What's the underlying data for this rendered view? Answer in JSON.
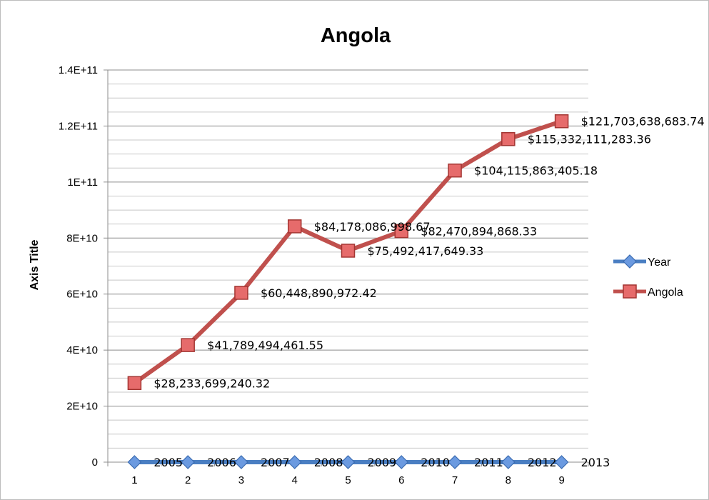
{
  "chart_data": {
    "type": "line",
    "title": "Angola",
    "xlabel": "",
    "ylabel": "Axis Title",
    "categories": [
      "1",
      "2",
      "3",
      "4",
      "5",
      "6",
      "7",
      "8",
      "9"
    ],
    "y_ticks": [
      "0",
      "2E+10",
      "4E+10",
      "6E+10",
      "8E+10",
      "1E+11",
      "1.2E+11",
      "1.4E+11"
    ],
    "ylim": [
      0,
      140000000000
    ],
    "grid": true,
    "legend": "right",
    "series": [
      {
        "name": "Year",
        "color": "#4a7ec2",
        "marker": "diamond",
        "values": [
          2005,
          2006,
          2007,
          2008,
          2009,
          2010,
          2011,
          2012,
          2013
        ],
        "labels": [
          "2005",
          "2006",
          "2007",
          "2008",
          "2009",
          "2010",
          "2011",
          "2012",
          "2013"
        ]
      },
      {
        "name": "Angola",
        "color": "#c0504d",
        "marker": "square",
        "values": [
          28233699240.32,
          41789494461.55,
          60448890972.42,
          84178086998.67,
          75492417649.33,
          82470894868.33,
          104115863405.18,
          115332111283.36,
          121703638683.74
        ],
        "labels": [
          "$28,233,699,240.32",
          "$41,789,494,461.55",
          "$60,448,890,972.42",
          "$84,178,086,998.67",
          "$75,492,417,649.33",
          "$82,470,894,868.33",
          "$104,115,863,405.18",
          "$115,332,111,283.36",
          "$121,703,638,683.74"
        ]
      }
    ]
  }
}
